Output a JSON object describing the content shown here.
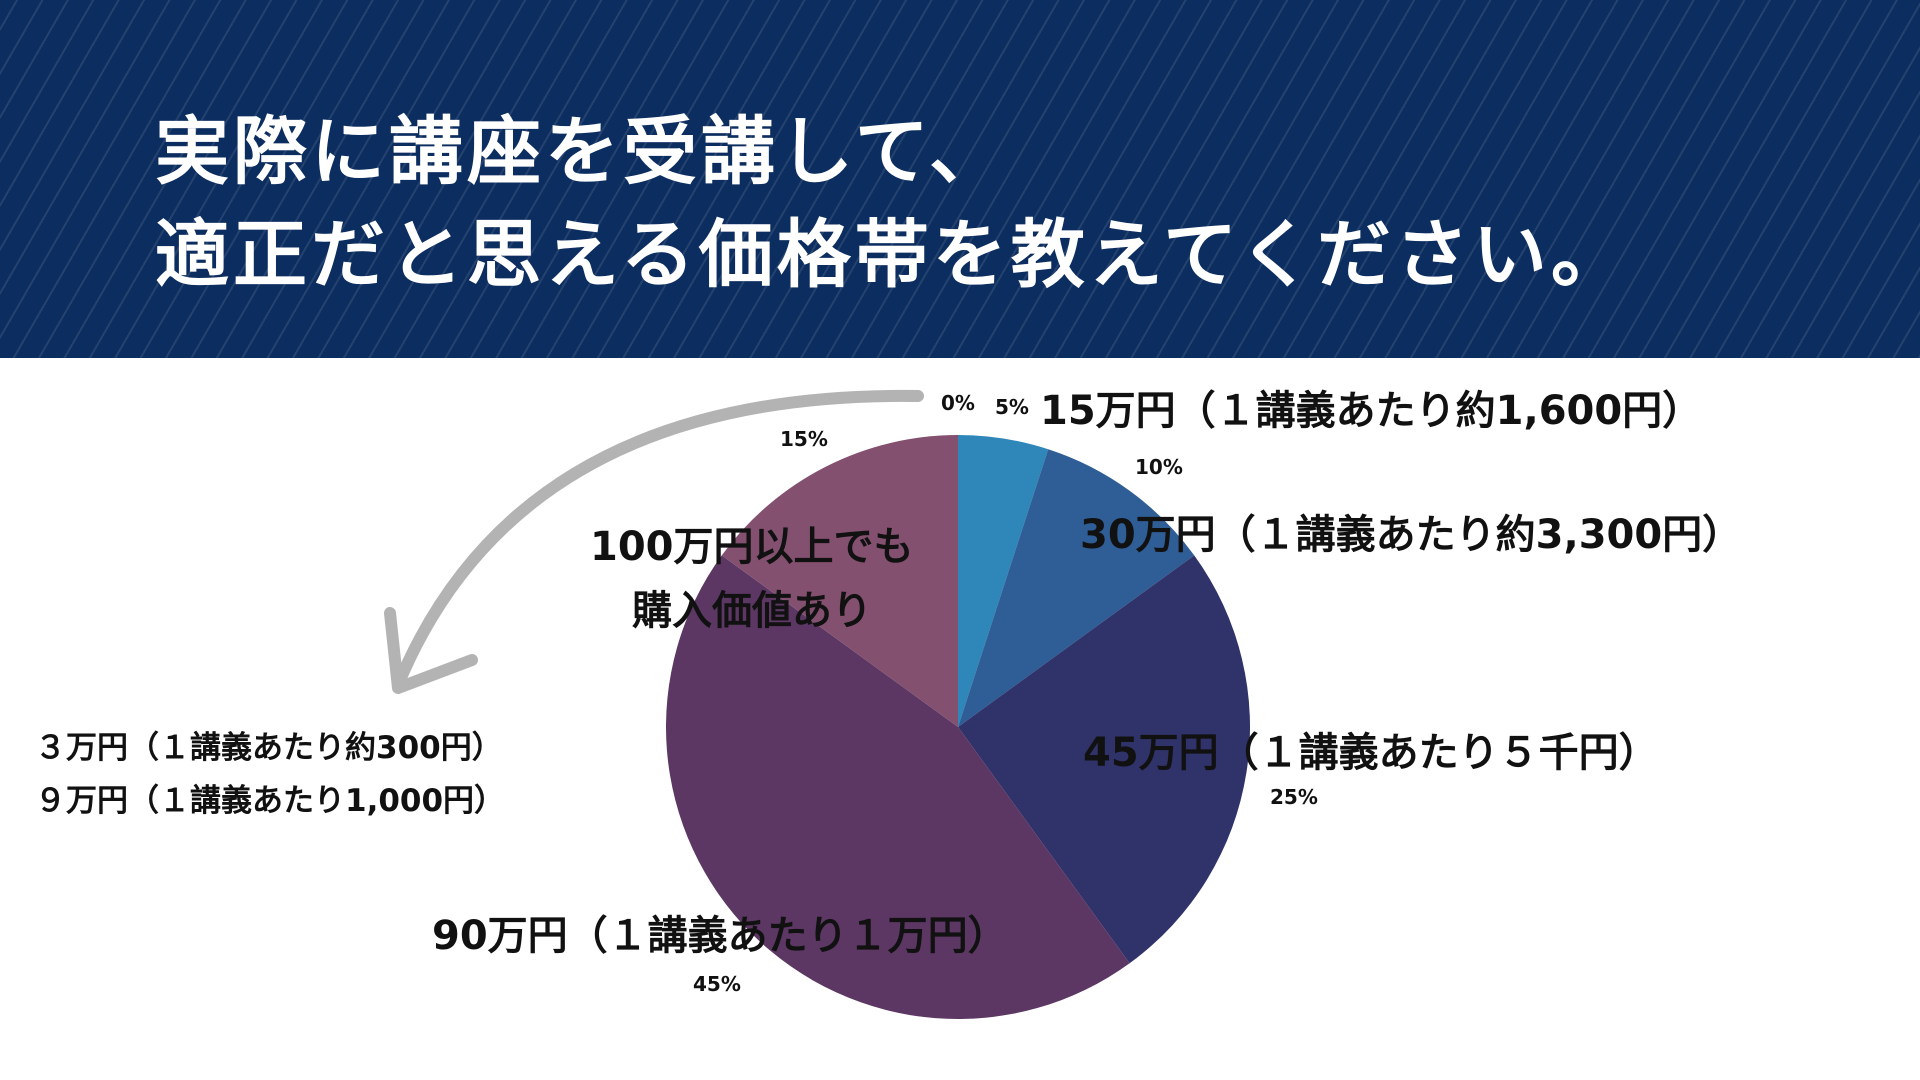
{
  "title": {
    "line1": "実際に講座を受講して、",
    "line2": "適正だと思える価格帯を教えてください。"
  },
  "colors": {
    "header_bg": "#0c2d5f",
    "arrow": "#b3b3b3"
  },
  "chart_data": {
    "type": "pie",
    "start_angle_deg": 0,
    "direction": "clockwise",
    "slices": [
      {
        "name": "15万円（１講義あたり約1,600円）",
        "value": 5,
        "percent_label": "5%",
        "color": "#2e87b8"
      },
      {
        "name": "30万円（１講義あたり約3,300円）",
        "value": 10,
        "percent_label": "10%",
        "color": "#2f5d95"
      },
      {
        "name": "45万円（１講義あたり５千円）",
        "value": 25,
        "percent_label": "25%",
        "color": "#30326a"
      },
      {
        "name": "90万円（１講義あたり１万円）",
        "value": 45,
        "percent_label": "45%",
        "color": "#5c3763"
      },
      {
        "name": "100万円以上でも購入価値あり",
        "value": 15,
        "percent_label": "15%",
        "color": "#83506f"
      },
      {
        "name": "３万円（１講義あたり約300円） ９万円（１講義あたり1,000円）",
        "value": 0,
        "percent_label": "0%",
        "color": "#b3b3b3"
      }
    ]
  },
  "labels": {
    "slice_15man": "15万円（１講義あたり約1,600円）",
    "slice_30man": "30万円（１講義あたり約3,300円）",
    "slice_45man": "45万円（１講義あたり５千円）",
    "slice_90man": "90万円（１講義あたり１万円）",
    "slice_100man_line1": "100万円以上でも",
    "slice_100man_line2": "購入価値あり",
    "slice_3man": "３万円（１講義あたり約300円）",
    "slice_9man": "９万円（１講義あたり1,000円）"
  },
  "percents": {
    "p0": "0%",
    "p5": "5%",
    "p10": "10%",
    "p15": "15%",
    "p25": "25%",
    "p45": "45%"
  }
}
